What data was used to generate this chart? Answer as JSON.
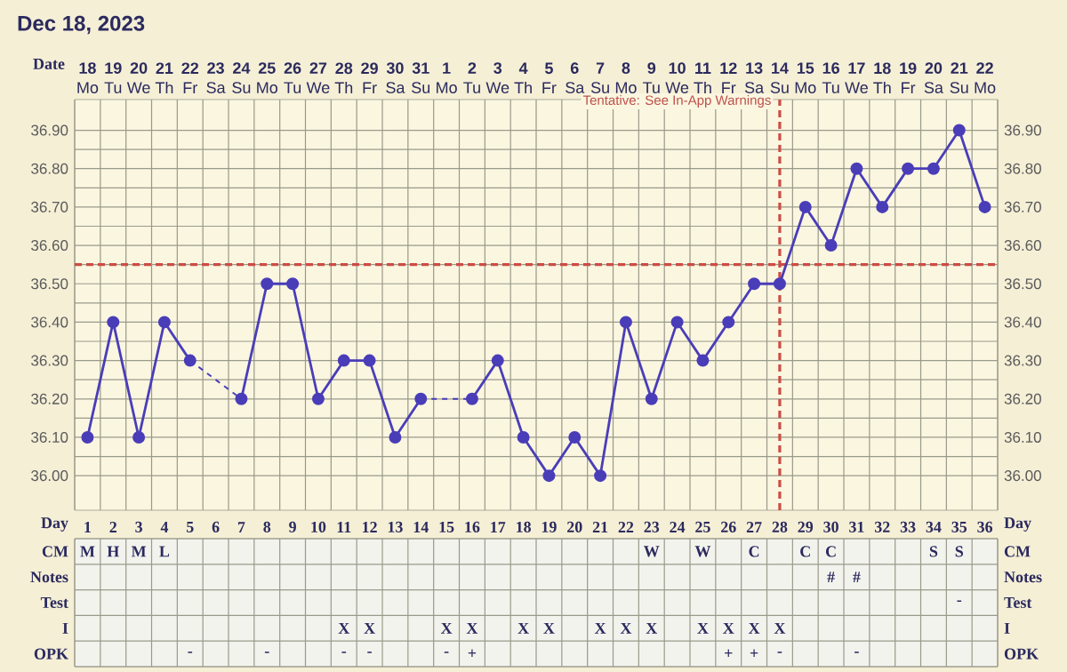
{
  "chart_data": [
    {
      "type": "line",
      "title": "Dec 18, 2023",
      "xlabel": "Date",
      "categories": [
        "**18** Mo",
        "**19** Tu",
        "**20** We",
        "**21** Th",
        "**22** Fr",
        "**23** Sa",
        "**24** Su",
        "**25** Mo",
        "**26** Tu",
        "**27** We",
        "**28** Th",
        "**29** Fr",
        "**30** Sa",
        "**31** Su",
        "**1** Mo",
        "**2** Tu",
        "**3** We",
        "**4** Th",
        "**5** Fr",
        "**6** Sa",
        "**7** Su",
        "**8** Mo",
        "**9** Tu",
        "**10** We",
        "**11** Th",
        "**12** Fr",
        "**13** Sa",
        "**14** Su",
        "**15** Mo",
        "**16** Tu",
        "**17** We",
        "**18** Th",
        "**19** Fr",
        "**20** Sa",
        "**21** Su",
        "**22** Mo"
      ],
      "series": [
        {
          "color": "#4a3db8",
          "values": [
            36.1,
            36.4,
            36.1,
            36.4,
            36.3,
            null,
            36.2,
            36.5,
            36.5,
            36.2,
            36.3,
            36.3,
            36.1,
            36.2,
            null,
            36.2,
            36.3,
            36.1,
            36.0,
            36.1,
            36.0,
            36.4,
            36.2,
            36.4,
            36.3,
            36.4,
            36.5,
            36.5,
            36.7,
            36.6,
            36.8,
            36.7,
            36.8,
            36.8,
            36.9,
            36.7
          ]
        }
      ],
      "ylim": [
        35.91,
        36.98
      ],
      "yticks": [
        {
          "value": 36.0,
          "label": "36.00"
        },
        {
          "value": 36.1,
          "label": "36.10"
        },
        {
          "value": 36.2,
          "label": "36.20"
        },
        {
          "value": 36.3,
          "label": "36.30"
        },
        {
          "value": 36.4,
          "label": "36.40"
        },
        {
          "value": 36.5,
          "label": "36.50"
        },
        {
          "value": 36.6,
          "label": "36.60"
        },
        {
          "value": 36.7,
          "label": "36.70"
        },
        {
          "value": 36.8,
          "label": "36.80"
        },
        {
          "value": 36.9,
          "label": "36.90"
        }
      ],
      "y2lim": [
        35.91,
        36.98
      ],
      "y2ticks": [
        {
          "value": 36.0,
          "label": "36.00"
        },
        {
          "value": 36.1,
          "label": "36.10"
        },
        {
          "value": 36.2,
          "label": "36.20"
        },
        {
          "value": 36.3,
          "label": "36.30"
        },
        {
          "value": 36.4,
          "label": "36.40"
        },
        {
          "value": 36.5,
          "label": "36.50"
        },
        {
          "value": 36.6,
          "label": "36.60"
        },
        {
          "value": 36.7,
          "label": "36.70"
        },
        {
          "value": 36.8,
          "label": "36.80"
        },
        {
          "value": 36.9,
          "label": "36.90"
        }
      ],
      "grid": true,
      "marker": "circle",
      "line_style": "solid",
      "ref_lines": [
        {
          "axis": "y",
          "value": 36.55,
          "color": "#cc4c44",
          "line_style": "dashed"
        },
        {
          "axis": "x",
          "value": "**14** Su",
          "color": "#cc4c44",
          "line_style": "dashed"
        }
      ],
      "annotations": [
        "Tentative: See In-App Warnings"
      ]
    },
    {
      "type": "heatmap",
      "xlabel": "Day",
      "categories": [
        "1",
        "2",
        "3",
        "4",
        "5",
        "6",
        "7",
        "8",
        "9",
        "10",
        "11",
        "12",
        "13",
        "14",
        "15",
        "16",
        "17",
        "18",
        "19",
        "20",
        "21",
        "22",
        "23",
        "24",
        "25",
        "26",
        "27",
        "28",
        "29",
        "30",
        "31",
        "32",
        "33",
        "34",
        "35",
        "36"
      ],
      "y_categories": [
        "CM",
        "Notes",
        "Test",
        "I",
        "OPK"
      ],
      "y2_categories": [
        "CM",
        "Notes",
        "Test",
        "I",
        "OPK"
      ],
      "cells": [
        [
          null,
          null,
          null,
          null,
          null,
          null,
          null,
          null,
          null,
          null,
          null,
          null,
          null,
          null,
          null,
          null,
          null,
          null,
          null,
          null,
          null,
          null,
          null,
          null,
          null,
          null,
          null,
          null,
          null,
          null,
          null,
          null,
          null,
          null,
          null,
          null
        ],
        [
          null,
          null,
          null,
          null,
          null,
          null,
          null,
          null,
          null,
          null,
          null,
          null,
          null,
          null,
          null,
          null,
          null,
          null,
          null,
          null,
          null,
          null,
          null,
          null,
          null,
          null,
          null,
          null,
          null,
          null,
          null,
          null,
          null,
          null,
          null,
          null
        ],
        [
          null,
          null,
          null,
          null,
          null,
          null,
          null,
          null,
          null,
          null,
          null,
          null,
          null,
          null,
          null,
          null,
          null,
          null,
          null,
          null,
          null,
          null,
          null,
          null,
          null,
          null,
          null,
          null,
          null,
          null,
          null,
          null,
          null,
          null,
          null,
          null
        ],
        [
          null,
          null,
          null,
          null,
          null,
          null,
          null,
          null,
          null,
          null,
          null,
          null,
          null,
          null,
          null,
          null,
          null,
          null,
          null,
          null,
          null,
          null,
          null,
          null,
          null,
          null,
          null,
          null,
          null,
          null,
          null,
          null,
          null,
          null,
          null,
          null
        ],
        [
          null,
          null,
          null,
          null,
          null,
          null,
          null,
          null,
          null,
          null,
          null,
          null,
          null,
          null,
          null,
          null,
          null,
          null,
          null,
          null,
          null,
          null,
          null,
          null,
          null,
          null,
          null,
          null,
          null,
          null,
          null,
          null,
          null,
          null,
          null,
          null
        ]
      ],
      "cell_labels": [
        [
          "M",
          "H",
          "M",
          "L",
          null,
          null,
          null,
          null,
          null,
          null,
          null,
          null,
          null,
          null,
          null,
          null,
          null,
          null,
          null,
          null,
          null,
          null,
          "W",
          null,
          "W",
          null,
          "C",
          null,
          "C",
          "C",
          null,
          null,
          null,
          "S",
          "S",
          null
        ],
        [
          null,
          null,
          null,
          null,
          null,
          null,
          null,
          null,
          null,
          null,
          null,
          null,
          null,
          null,
          null,
          null,
          null,
          null,
          null,
          null,
          null,
          null,
          null,
          null,
          null,
          null,
          null,
          null,
          null,
          "#",
          "#",
          null,
          null,
          null,
          null,
          null
        ],
        [
          null,
          null,
          null,
          null,
          null,
          null,
          null,
          null,
          null,
          null,
          null,
          null,
          null,
          null,
          null,
          null,
          null,
          null,
          null,
          null,
          null,
          null,
          null,
          null,
          null,
          null,
          null,
          null,
          null,
          null,
          null,
          null,
          null,
          null,
          "-",
          null
        ],
        [
          null,
          null,
          null,
          null,
          null,
          null,
          null,
          null,
          null,
          null,
          "X",
          "X",
          null,
          null,
          "X",
          "X",
          null,
          "X",
          "X",
          null,
          "X",
          "X",
          "X",
          null,
          "X",
          "X",
          "X",
          "X",
          null,
          null,
          null,
          null,
          null,
          null,
          null,
          null
        ],
        [
          null,
          null,
          null,
          null,
          "-",
          null,
          null,
          "-",
          null,
          null,
          "-",
          "-",
          null,
          null,
          "-",
          "+",
          null,
          null,
          null,
          null,
          null,
          null,
          null,
          null,
          null,
          "+",
          "+",
          "-",
          null,
          null,
          "-",
          null,
          null,
          null,
          null,
          null
        ]
      ]
    }
  ]
}
